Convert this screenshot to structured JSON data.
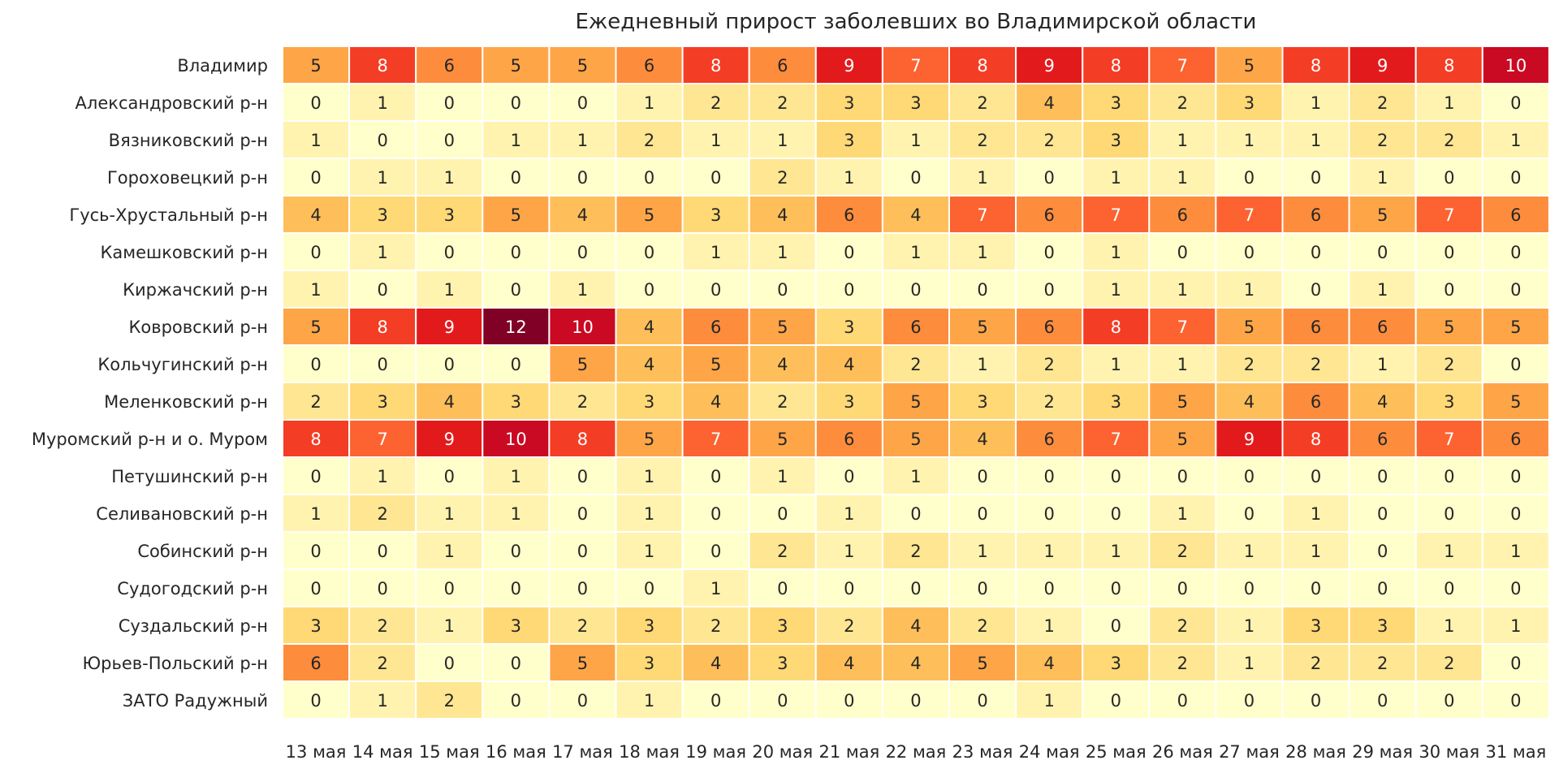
{
  "chart_data": {
    "type": "heatmap",
    "title": "Ежедневный прирост заболевших во Владимирской области",
    "xlabel": "",
    "ylabel": "",
    "categories": [
      "13 мая",
      "14 мая",
      "15 мая",
      "16 мая",
      "17 мая",
      "18 мая",
      "19 мая",
      "20 мая",
      "21 мая",
      "22 мая",
      "23 мая",
      "24 мая",
      "25 мая",
      "26 мая",
      "27 мая",
      "28 мая",
      "29 мая",
      "30 мая",
      "31 мая"
    ],
    "rows": [
      {
        "name": "Владимир",
        "values": [
          5,
          8,
          6,
          5,
          5,
          6,
          8,
          6,
          9,
          7,
          8,
          9,
          8,
          7,
          5,
          8,
          9,
          8,
          10
        ]
      },
      {
        "name": "Александровский р-н",
        "values": [
          0,
          1,
          0,
          0,
          0,
          1,
          2,
          2,
          3,
          3,
          2,
          4,
          3,
          2,
          3,
          1,
          2,
          1,
          0
        ]
      },
      {
        "name": "Вязниковский р-н",
        "values": [
          1,
          0,
          0,
          1,
          1,
          2,
          1,
          1,
          3,
          1,
          2,
          2,
          3,
          1,
          1,
          1,
          2,
          2,
          1
        ]
      },
      {
        "name": "Гороховецкий р-н",
        "values": [
          0,
          1,
          1,
          0,
          0,
          0,
          0,
          2,
          1,
          0,
          1,
          0,
          1,
          1,
          0,
          0,
          1,
          0,
          0
        ]
      },
      {
        "name": "Гусь-Хрустальный р-н",
        "values": [
          4,
          3,
          3,
          5,
          4,
          5,
          3,
          4,
          6,
          4,
          7,
          6,
          7,
          6,
          7,
          6,
          5,
          7,
          6
        ]
      },
      {
        "name": "Камешковский р-н",
        "values": [
          0,
          1,
          0,
          0,
          0,
          0,
          1,
          1,
          0,
          1,
          1,
          0,
          1,
          0,
          0,
          0,
          0,
          0,
          0
        ]
      },
      {
        "name": "Киржачский р-н",
        "values": [
          1,
          0,
          1,
          0,
          1,
          0,
          0,
          0,
          0,
          0,
          0,
          0,
          1,
          1,
          1,
          0,
          1,
          0,
          0
        ]
      },
      {
        "name": "Ковровский р-н",
        "values": [
          5,
          8,
          9,
          12,
          10,
          4,
          6,
          5,
          3,
          6,
          5,
          6,
          8,
          7,
          5,
          6,
          6,
          5,
          5
        ]
      },
      {
        "name": "Кольчугинский р-н",
        "values": [
          0,
          0,
          0,
          0,
          5,
          4,
          5,
          4,
          4,
          2,
          1,
          2,
          1,
          1,
          2,
          2,
          1,
          2,
          0
        ]
      },
      {
        "name": "Меленковский р-н",
        "values": [
          2,
          3,
          4,
          3,
          2,
          3,
          4,
          2,
          3,
          5,
          3,
          2,
          3,
          5,
          4,
          6,
          4,
          3,
          5
        ]
      },
      {
        "name": "Муромский р-н и о. Муром",
        "values": [
          8,
          7,
          9,
          10,
          8,
          5,
          7,
          5,
          6,
          5,
          4,
          6,
          7,
          5,
          9,
          8,
          6,
          7,
          6
        ]
      },
      {
        "name": "Петушинский р-н",
        "values": [
          0,
          1,
          0,
          1,
          0,
          1,
          0,
          1,
          0,
          1,
          0,
          0,
          0,
          0,
          0,
          0,
          0,
          0,
          0
        ]
      },
      {
        "name": "Селивановский р-н",
        "values": [
          1,
          2,
          1,
          1,
          0,
          1,
          0,
          0,
          1,
          0,
          0,
          0,
          0,
          1,
          0,
          1,
          0,
          0,
          0
        ]
      },
      {
        "name": "Собинский р-н",
        "values": [
          0,
          0,
          1,
          0,
          0,
          1,
          0,
          2,
          1,
          2,
          1,
          1,
          1,
          2,
          1,
          1,
          0,
          1,
          1
        ]
      },
      {
        "name": "Судогодский р-н",
        "values": [
          0,
          0,
          0,
          0,
          0,
          0,
          1,
          0,
          0,
          0,
          0,
          0,
          0,
          0,
          0,
          0,
          0,
          0,
          0
        ]
      },
      {
        "name": "Суздальский р-н",
        "values": [
          3,
          2,
          1,
          3,
          2,
          3,
          2,
          3,
          2,
          4,
          2,
          1,
          0,
          2,
          1,
          3,
          3,
          1,
          1
        ]
      },
      {
        "name": "Юрьев-Польский р-н",
        "values": [
          6,
          2,
          0,
          0,
          5,
          3,
          4,
          3,
          4,
          4,
          5,
          4,
          3,
          2,
          1,
          2,
          2,
          2,
          0
        ]
      },
      {
        "name": "ЗАТО Радужный",
        "values": [
          0,
          1,
          2,
          0,
          0,
          1,
          0,
          0,
          0,
          0,
          0,
          1,
          0,
          0,
          0,
          0,
          0,
          0,
          0
        ]
      }
    ],
    "color_range": [
      0,
      12
    ],
    "colormap": "YlOrRd",
    "colors": {
      "c0": "#ffffcc",
      "c1": "#ffeda0",
      "c2": "#fed976",
      "c3": "#feb24c",
      "c4": "#fd8d3c",
      "c5": "#fc4e2a",
      "c6": "#e31a1c",
      "c7": "#bd0026",
      "c8": "#800026",
      "text_dark": "#262626",
      "text_light": "#ffffff",
      "grid": "#ffffff"
    },
    "grid": true,
    "legend": "none"
  }
}
